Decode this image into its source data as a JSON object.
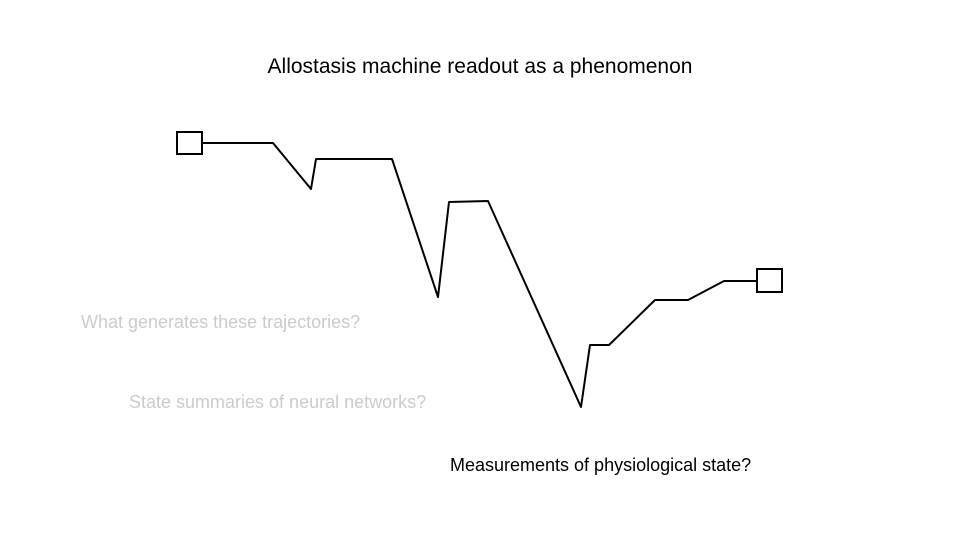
{
  "slide": {
    "title": "Allostasis machine readout as a phenomenon",
    "questions": [
      {
        "text": "What generates these trajectories?",
        "color": "#cccccc"
      },
      {
        "text": "State summaries of neural networks?",
        "color": "#cccccc"
      },
      {
        "text": "Measurements of physiological state?",
        "color": "#000000"
      }
    ]
  },
  "diagram": {
    "line_color": "#000000",
    "start_marker": "square-outline",
    "end_marker": "square-outline"
  }
}
